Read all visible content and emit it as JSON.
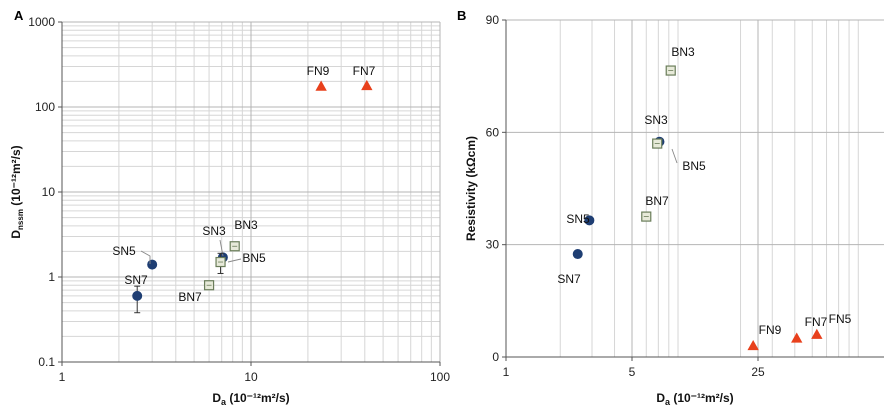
{
  "chart_data": [
    {
      "panel": "A",
      "type": "scatter",
      "title": "",
      "xlabel": "Da (10⁻¹²m²/s)",
      "xlabel_main": "D",
      "xlabel_sub": "a",
      "xlabel_unit": " (10⁻¹²m²/s)",
      "ylabel": "Dnssm (10⁻¹²m²/s)",
      "ylabel_main": "D",
      "ylabel_sub": "nssm",
      "ylabel_unit": " (10⁻¹²m²/s)",
      "xscale": "log",
      "yscale": "log",
      "xlim": [
        1,
        100
      ],
      "ylim": [
        0.1,
        1000
      ],
      "xticks": [
        "1",
        "10",
        "100"
      ],
      "yticks": [
        "0.1",
        "1",
        "10",
        "100",
        "1000"
      ],
      "grid": true,
      "points": [
        {
          "label": "SN5",
          "x": 3.0,
          "y": 1.4,
          "marker": "circle",
          "color": "#1f3e73"
        },
        {
          "label": "SN7",
          "x": 2.5,
          "y": 0.6,
          "marker": "circle",
          "color": "#1f3e73",
          "err": [
            0.38,
            0.78
          ]
        },
        {
          "label": "SN3",
          "x": 7.1,
          "y": 1.7,
          "marker": "circle",
          "color": "#1f3e73"
        },
        {
          "label": "BN3",
          "x": 8.2,
          "y": 2.3,
          "marker": "square",
          "color": "#6a7d5a"
        },
        {
          "label": "BN5",
          "x": 6.9,
          "y": 1.5,
          "marker": "square",
          "color": "#6a7d5a",
          "err": [
            1.1,
            1.9
          ]
        },
        {
          "label": "BN7",
          "x": 6.0,
          "y": 0.8,
          "marker": "square",
          "color": "#6a7d5a"
        },
        {
          "label": "FN9",
          "x": 23.5,
          "y": 175,
          "marker": "triangle",
          "color": "#e8401c"
        },
        {
          "label": "FN7",
          "x": 41,
          "y": 178,
          "marker": "triangle",
          "color": "#e8401c"
        }
      ]
    },
    {
      "panel": "B",
      "type": "scatter",
      "title": "",
      "xlabel": "Da (10⁻¹²m²/s)",
      "xlabel_main": "D",
      "xlabel_sub": "a",
      "xlabel_unit": " (10⁻¹²m²/s)",
      "ylabel": "Resistivity (kΩcm)",
      "xscale": "log",
      "yscale": "linear",
      "xlim": [
        1,
        125
      ],
      "ylim": [
        0,
        90
      ],
      "xticks": [
        "1",
        "5",
        "25"
      ],
      "yticks": [
        "0",
        "30",
        "60",
        "90"
      ],
      "grid": true,
      "points": [
        {
          "label": "SN5",
          "x": 2.9,
          "y": 36.5,
          "marker": "circle",
          "color": "#1f3e73"
        },
        {
          "label": "SN7",
          "x": 2.5,
          "y": 27.5,
          "marker": "circle",
          "color": "#1f3e73"
        },
        {
          "label": "SN3",
          "x": 7.1,
          "y": 57.5,
          "marker": "circle",
          "color": "#1f3e73"
        },
        {
          "label": "BN5",
          "x": 6.9,
          "y": 57,
          "marker": "square",
          "color": "#6a7d5a"
        },
        {
          "label": "BN3",
          "x": 8.2,
          "y": 76.5,
          "marker": "square",
          "color": "#6a7d5a"
        },
        {
          "label": "BN7",
          "x": 6.0,
          "y": 37.5,
          "marker": "square",
          "color": "#6a7d5a"
        },
        {
          "label": "FN9",
          "x": 23.5,
          "y": 3,
          "marker": "triangle",
          "color": "#e8401c"
        },
        {
          "label": "FN7",
          "x": 41,
          "y": 5,
          "marker": "triangle",
          "color": "#e8401c"
        },
        {
          "label": "FN5",
          "x": 53,
          "y": 6,
          "marker": "triangle",
          "color": "#e8401c"
        }
      ]
    }
  ]
}
